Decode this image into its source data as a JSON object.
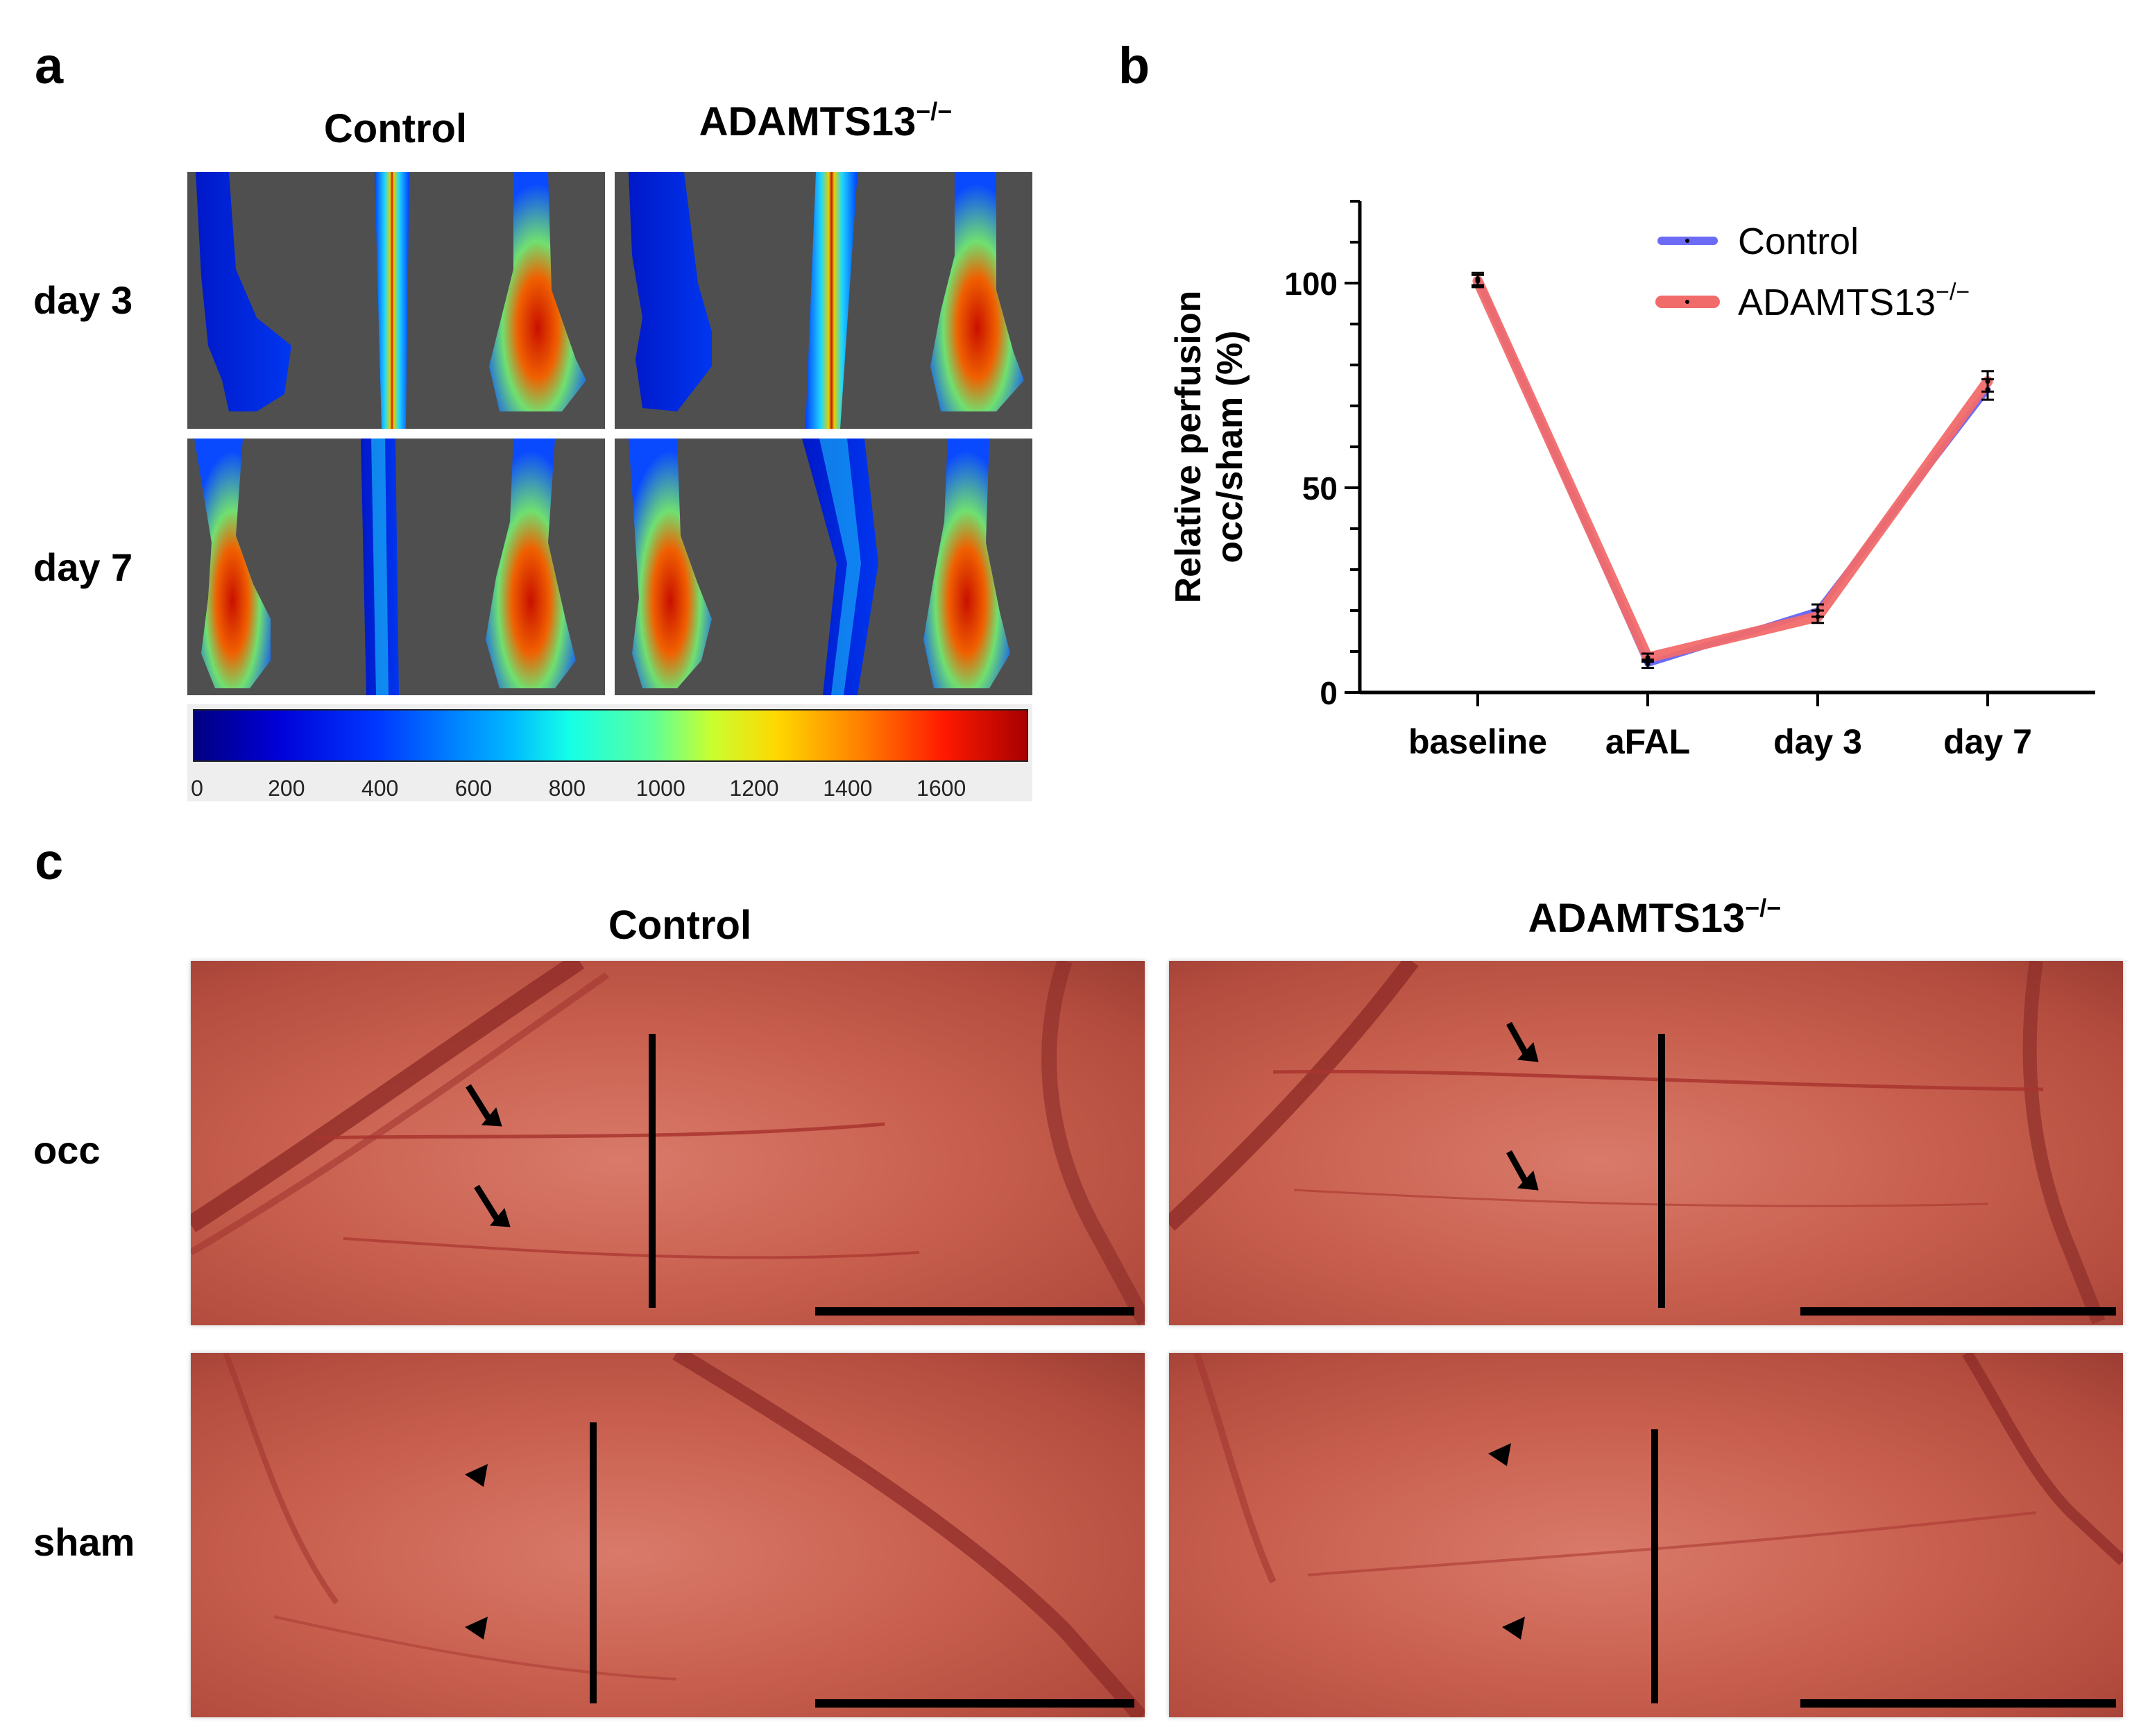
{
  "panels": {
    "a": {
      "letter": "a"
    },
    "b": {
      "letter": "b"
    },
    "c": {
      "letter": "c"
    }
  },
  "panel_a": {
    "col_control": "Control",
    "col_ko": "ADAMTS13",
    "col_ko_sup": "−/−",
    "row_day3": "day 3",
    "row_day7": "day 7",
    "colorbar_ticks": [
      "0",
      "200",
      "400",
      "600",
      "800",
      "1000",
      "1200",
      "1400",
      "1600"
    ],
    "colorbar_range": [
      0,
      1780
    ]
  },
  "panel_c": {
    "col_control": "Control",
    "col_ko": "ADAMTS13",
    "col_ko_sup": "−/−",
    "row_occ": "occ",
    "row_sham": "sham"
  },
  "colors": {
    "control": "#6b6bf5",
    "ko": "#f26b6b",
    "tile_bg": "#4f4f4f"
  },
  "chart_data": {
    "type": "line",
    "title": "",
    "xlabel": "",
    "ylabel_line1": "Relative perfusion",
    "ylabel_line2": "occ/sham (%)",
    "categories": [
      "baseline",
      "aFAL",
      "day 3",
      "day 7"
    ],
    "ylim": [
      0,
      120
    ],
    "yticks": [
      0,
      50,
      100
    ],
    "legend_position": "top-right",
    "series": [
      {
        "name": "Control",
        "values": [
          101,
          7,
          20,
          74
        ],
        "errors": [
          1.5,
          1,
          1.5,
          2.5
        ],
        "color": "#6b6bf5"
      },
      {
        "name": "ADAMTS13",
        "name_sup": "−/−",
        "values": [
          100.5,
          8.5,
          18.5,
          76
        ],
        "errors": [
          1.5,
          1,
          1.5,
          2.5
        ],
        "color": "#f26b6b"
      }
    ]
  }
}
